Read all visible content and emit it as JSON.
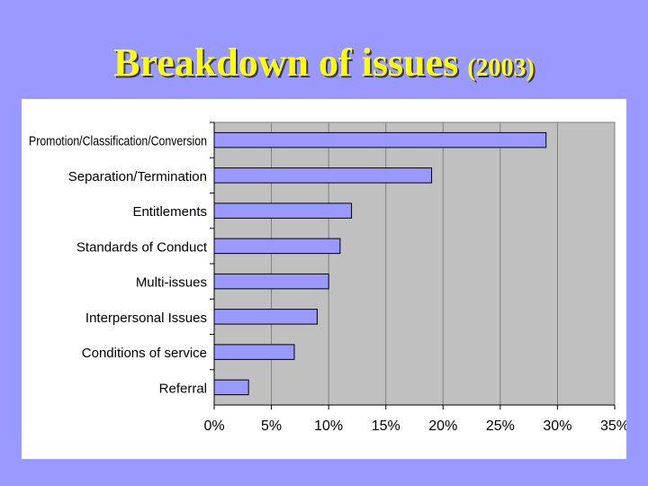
{
  "slide": {
    "title": "Breakdown of issues",
    "year": "(2003)"
  },
  "colors": {
    "background": "#9999ff",
    "title": "#ffff00",
    "bar_fill": "#9999ff",
    "plot_area": "#c0c0c0"
  },
  "chart_data": {
    "type": "bar",
    "orientation": "horizontal",
    "title": "",
    "xlabel": "",
    "ylabel": "",
    "categories": [
      "Promotion/Classification/Conversion",
      "Separation/Termination",
      "Entitlements",
      "Standards of Conduct",
      "Multi-issues",
      "Interpersonal Issues",
      "Conditions of service",
      "Referral"
    ],
    "values": [
      29,
      19,
      12,
      11,
      10,
      9,
      7,
      3
    ],
    "value_unit": "%",
    "xlim": [
      0,
      35
    ],
    "x_ticks": [
      "0%",
      "5%",
      "10%",
      "15%",
      "20%",
      "25%",
      "30%",
      "35%"
    ],
    "grid": "vertical",
    "legend": "none"
  }
}
